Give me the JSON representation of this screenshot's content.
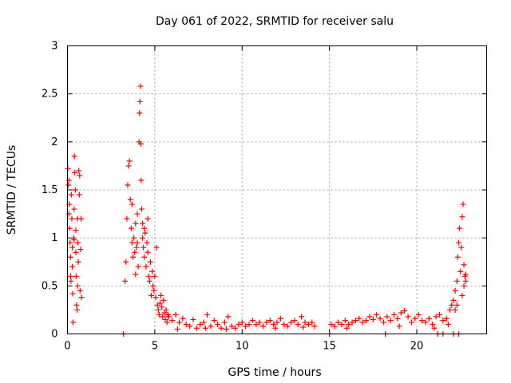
{
  "chart_data": {
    "type": "scatter",
    "title": "Day 061 of 2022, SRMTID for receiver salu",
    "xlabel": "GPS time / hours",
    "ylabel": "SRMTID / TECUs",
    "xlim": [
      0,
      24
    ],
    "ylim": [
      0,
      3
    ],
    "xticks": [
      "0",
      "5",
      "10",
      "15",
      "20"
    ],
    "xtick_values": [
      0,
      5,
      10,
      15,
      20
    ],
    "yticks": [
      "0",
      "0.5",
      "1",
      "1.5",
      "2",
      "2.5",
      "3"
    ],
    "ytick_values": [
      0,
      0.5,
      1,
      1.5,
      2,
      2.5,
      3
    ],
    "grid": true,
    "marker": "+",
    "color": "#ff0000",
    "series": [
      {
        "name": "SRMTID",
        "points": [
          [
            0.02,
            1.72
          ],
          [
            0.05,
            1.55
          ],
          [
            0.08,
            1.6
          ],
          [
            0.1,
            1.35
          ],
          [
            0.12,
            1.1
          ],
          [
            0.15,
            0.95
          ],
          [
            0.18,
            0.6
          ],
          [
            0.2,
            0.55
          ],
          [
            0.22,
            1.45
          ],
          [
            0.25,
            1.2
          ],
          [
            0.28,
            0.9
          ],
          [
            0.3,
            0.42
          ],
          [
            0.32,
            0.12
          ],
          [
            0.35,
            1.0
          ],
          [
            0.38,
            1.3
          ],
          [
            0.4,
            1.85
          ],
          [
            0.42,
            1.68
          ],
          [
            0.45,
            1.5
          ],
          [
            0.48,
            0.85
          ],
          [
            0.5,
            0.6
          ],
          [
            0.52,
            0.3
          ],
          [
            0.55,
            0.25
          ],
          [
            0.58,
            1.2
          ],
          [
            0.6,
            0.95
          ],
          [
            0.62,
            0.75
          ],
          [
            0.65,
            1.7
          ],
          [
            0.68,
            1.45
          ],
          [
            0.7,
            1.65
          ],
          [
            0.72,
            0.45
          ],
          [
            0.75,
            0.88
          ],
          [
            0.78,
            1.2
          ],
          [
            0.8,
            0.38
          ],
          [
            0.08,
            1.25
          ],
          [
            0.18,
            0.8
          ],
          [
            0.28,
            0.7
          ],
          [
            0.38,
            0.98
          ],
          [
            0.48,
            1.08
          ],
          [
            0.58,
            0.5
          ],
          [
            3.2,
            0.0
          ],
          [
            3.3,
            0.55
          ],
          [
            3.35,
            0.75
          ],
          [
            3.4,
            1.2
          ],
          [
            3.45,
            1.55
          ],
          [
            3.5,
            1.75
          ],
          [
            3.55,
            1.8
          ],
          [
            3.6,
            1.4
          ],
          [
            3.65,
            1.1
          ],
          [
            3.7,
            0.95
          ],
          [
            3.75,
            0.8
          ],
          [
            3.8,
            1.0
          ],
          [
            3.85,
            0.85
          ],
          [
            3.9,
            0.62
          ],
          [
            3.95,
            0.9
          ],
          [
            4.0,
            1.25
          ],
          [
            4.05,
            0.7
          ],
          [
            4.1,
            2.0
          ],
          [
            4.12,
            2.3
          ],
          [
            4.15,
            2.42
          ],
          [
            4.18,
            2.58
          ],
          [
            4.2,
            1.98
          ],
          [
            4.22,
            1.6
          ],
          [
            4.25,
            1.3
          ],
          [
            4.3,
            1.15
          ],
          [
            4.35,
            0.9
          ],
          [
            4.4,
            0.8
          ],
          [
            4.45,
            1.05
          ],
          [
            4.5,
            0.7
          ],
          [
            4.55,
            0.95
          ],
          [
            4.6,
            0.85
          ],
          [
            4.65,
            0.6
          ],
          [
            4.7,
            0.55
          ],
          [
            4.75,
            0.75
          ],
          [
            4.8,
            0.4
          ],
          [
            4.85,
            0.65
          ],
          [
            4.9,
            0.5
          ],
          [
            4.95,
            0.45
          ],
          [
            5.0,
            0.6
          ],
          [
            5.05,
            0.38
          ],
          [
            5.1,
            0.9
          ],
          [
            5.15,
            0.3
          ],
          [
            5.2,
            0.25
          ],
          [
            5.25,
            0.2
          ],
          [
            5.3,
            0.32
          ],
          [
            5.35,
            0.4
          ],
          [
            5.4,
            0.28
          ],
          [
            5.45,
            0.18
          ],
          [
            5.5,
            0.35
          ],
          [
            5.55,
            0.22
          ],
          [
            5.6,
            0.15
          ],
          [
            5.65,
            0.25
          ],
          [
            5.7,
            0.12
          ],
          [
            5.75,
            0.2
          ],
          [
            3.7,
            1.35
          ],
          [
            3.9,
            1.15
          ],
          [
            4.0,
            0.95
          ],
          [
            4.3,
            1.0
          ],
          [
            4.4,
            1.1
          ],
          [
            4.6,
            1.2
          ],
          [
            5.8,
            0.18
          ],
          [
            6.0,
            0.14
          ],
          [
            6.2,
            0.2
          ],
          [
            6.4,
            0.12
          ],
          [
            6.6,
            0.16
          ],
          [
            6.8,
            0.1
          ],
          [
            7.0,
            0.08
          ],
          [
            7.2,
            0.15
          ],
          [
            7.4,
            0.06
          ],
          [
            7.6,
            0.1
          ],
          [
            7.8,
            0.12
          ],
          [
            8.0,
            0.2
          ],
          [
            8.2,
            0.08
          ],
          [
            8.4,
            0.14
          ],
          [
            8.6,
            0.1
          ],
          [
            8.8,
            0.06
          ],
          [
            9.0,
            0.12
          ],
          [
            9.2,
            0.18
          ],
          [
            9.4,
            0.08
          ],
          [
            9.6,
            0.06
          ],
          [
            9.8,
            0.1
          ],
          [
            10.0,
            0.12
          ],
          [
            10.2,
            0.08
          ],
          [
            10.4,
            0.1
          ],
          [
            10.6,
            0.14
          ],
          [
            10.8,
            0.1
          ],
          [
            11.0,
            0.12
          ],
          [
            11.2,
            0.08
          ],
          [
            11.4,
            0.12
          ],
          [
            11.6,
            0.14
          ],
          [
            11.8,
            0.1
          ],
          [
            12.0,
            0.12
          ],
          [
            12.2,
            0.16
          ],
          [
            12.4,
            0.1
          ],
          [
            12.6,
            0.08
          ],
          [
            12.8,
            0.12
          ],
          [
            13.0,
            0.14
          ],
          [
            13.2,
            0.1
          ],
          [
            13.4,
            0.18
          ],
          [
            13.6,
            0.12
          ],
          [
            13.8,
            0.1
          ],
          [
            14.0,
            0.12
          ],
          [
            14.15,
            0.08
          ],
          [
            15.0,
            0.0
          ],
          [
            15.1,
            0.1
          ],
          [
            15.3,
            0.08
          ],
          [
            15.5,
            0.12
          ],
          [
            15.7,
            0.1
          ],
          [
            15.9,
            0.14
          ],
          [
            16.1,
            0.1
          ],
          [
            16.3,
            0.12
          ],
          [
            16.5,
            0.14
          ],
          [
            16.7,
            0.16
          ],
          [
            16.9,
            0.12
          ],
          [
            17.1,
            0.14
          ],
          [
            17.3,
            0.18
          ],
          [
            17.5,
            0.15
          ],
          [
            17.7,
            0.2
          ],
          [
            17.9,
            0.16
          ],
          [
            18.1,
            0.12
          ],
          [
            18.2,
            0.0
          ],
          [
            18.3,
            0.18
          ],
          [
            18.5,
            0.14
          ],
          [
            18.7,
            0.2
          ],
          [
            18.9,
            0.16
          ],
          [
            19.1,
            0.22
          ],
          [
            19.3,
            0.24
          ],
          [
            19.5,
            0.18
          ],
          [
            19.7,
            0.12
          ],
          [
            19.9,
            0.16
          ],
          [
            20.1,
            0.2
          ],
          [
            20.3,
            0.14
          ],
          [
            20.5,
            0.12
          ],
          [
            20.7,
            0.16
          ],
          [
            20.9,
            0.1
          ],
          [
            21.1,
            0.18
          ],
          [
            21.3,
            0.2
          ],
          [
            21.5,
            0.14
          ],
          [
            21.7,
            0.16
          ],
          [
            21.9,
            0.25
          ],
          [
            22.0,
            0.3
          ],
          [
            22.1,
            0.35
          ],
          [
            22.2,
            0.45
          ],
          [
            22.3,
            0.55
          ],
          [
            22.35,
            0.8
          ],
          [
            22.4,
            0.95
          ],
          [
            22.45,
            1.1
          ],
          [
            22.5,
            0.65
          ],
          [
            22.55,
            0.9
          ],
          [
            22.6,
            1.22
          ],
          [
            22.65,
            1.35
          ],
          [
            22.7,
            0.72
          ],
          [
            22.75,
            0.6
          ],
          [
            22.8,
            0.55
          ],
          [
            22.2,
            0.25
          ],
          [
            22.3,
            0.3
          ],
          [
            21.8,
            0.1
          ],
          [
            22.6,
            0.4
          ],
          [
            22.7,
            0.5
          ],
          [
            22.8,
            0.62
          ],
          [
            6.3,
            0.05
          ],
          [
            7.9,
            0.06
          ],
          [
            9.1,
            0.05
          ],
          [
            11.9,
            0.06
          ],
          [
            13.5,
            0.07
          ],
          [
            16.0,
            0.06
          ],
          [
            19.0,
            0.08
          ],
          [
            21.0,
            0.06
          ],
          [
            21.2,
            0.0
          ],
          [
            21.5,
            0.0
          ],
          [
            22.1,
            0.0
          ],
          [
            22.4,
            0.0
          ]
        ]
      }
    ]
  }
}
